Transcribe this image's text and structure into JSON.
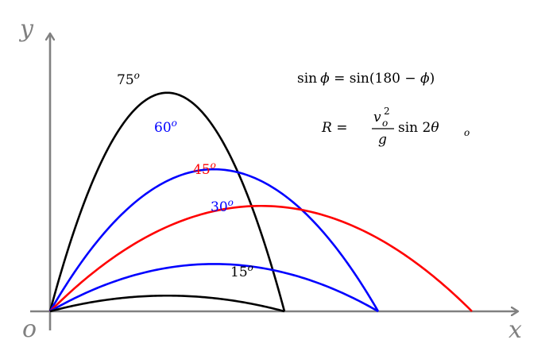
{
  "axes": {
    "x_label": "x",
    "y_label": "y",
    "origin_label": "o",
    "color": "#808080"
  },
  "trajectories": [
    {
      "angle": 75,
      "label_deg": "75",
      "label_sup": "o",
      "color": "#000000",
      "range": 1.0
    },
    {
      "angle": 60,
      "label_deg": "60",
      "label_sup": "o",
      "color": "#0000ff",
      "range": 1.4
    },
    {
      "angle": 45,
      "label_deg": "45",
      "label_sup": "o",
      "color": "#ff0000",
      "range": 1.8
    },
    {
      "angle": 30,
      "label_deg": "30",
      "label_sup": "o",
      "color": "#0000ff",
      "range": 1.4
    },
    {
      "angle": 15,
      "label_deg": "15",
      "label_sup": "o",
      "color": "#000000",
      "range": 1.0
    }
  ],
  "formulas": {
    "f1_left": "sin",
    "f1_phi": "ϕ",
    "f1_eq": " = sin(180 − ",
    "f1_phi2": "ϕ",
    "f1_close": ")",
    "f2_R": "R",
    "f2_eq": " = ",
    "f2_num_v": "v",
    "f2_num_sup": "2",
    "f2_num_sub": "o",
    "f2_den": "g",
    "f2_rest": " sin 2",
    "f2_theta": "θ",
    "f2_theta_sub": "o"
  }
}
